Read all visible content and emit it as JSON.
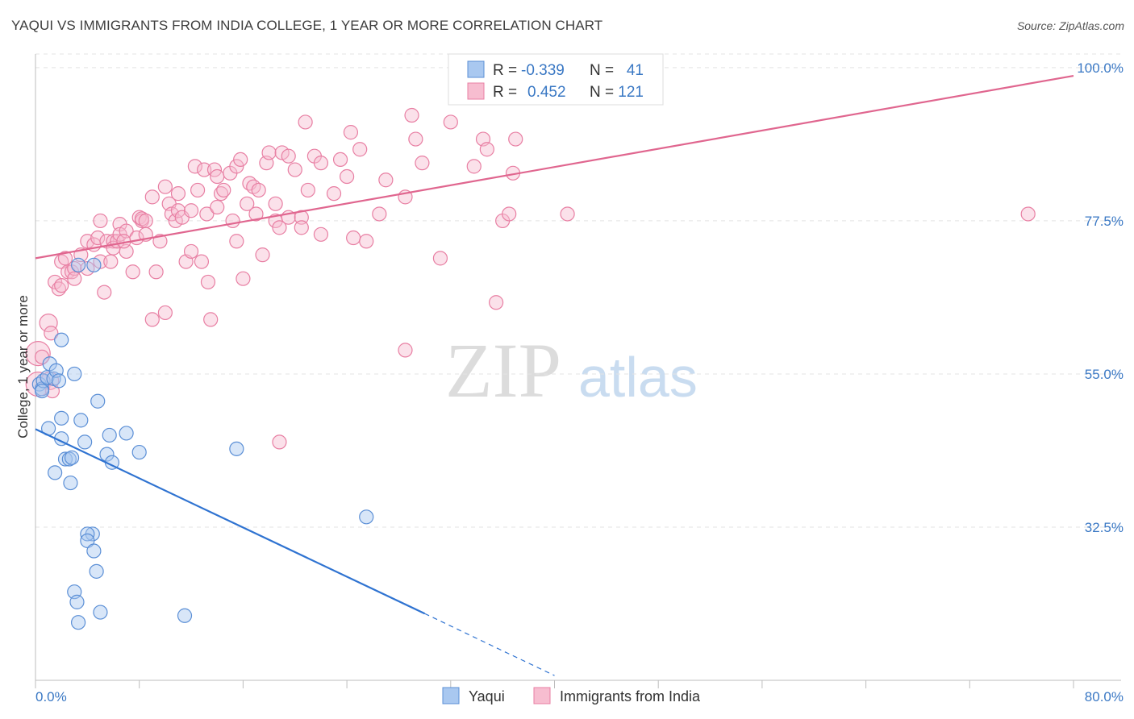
{
  "title": "YAQUI VS IMMIGRANTS FROM INDIA COLLEGE, 1 YEAR OR MORE CORRELATION CHART",
  "source": "Source: ZipAtlas.com",
  "watermark": {
    "zip": "ZIP",
    "atlas": "atlas"
  },
  "colors": {
    "blue_fill": "#a9c8f0",
    "blue_stroke": "#5b8fd6",
    "blue_line": "#2f73d1",
    "pink_fill": "#f7bdd0",
    "pink_stroke": "#e87fa3",
    "pink_line": "#e0668f",
    "label_blue": "#3a78c4",
    "grid": "#e3e3e3"
  },
  "legend": {
    "rows": [
      {
        "r_label": "R =",
        "r_value": "-0.339",
        "n_label": "N =",
        "n_value": "41"
      },
      {
        "r_label": "R =",
        "r_value": "0.452",
        "n_label": "N =",
        "n_value": "121"
      }
    ]
  },
  "bottom_legend": {
    "series1": "Yaqui",
    "series2": "Immigrants from India"
  },
  "chart_data": {
    "type": "scatter",
    "title": "YAQUI VS IMMIGRANTS FROM INDIA COLLEGE, 1 YEAR OR MORE CORRELATION CHART",
    "xlabel": "",
    "ylabel": "College, 1 year or more",
    "xlim": [
      0,
      80
    ],
    "ylim": [
      10,
      102
    ],
    "x_tick_labels": [
      "0.0%",
      "80.0%"
    ],
    "y_ticks": [
      32.5,
      55.0,
      77.5,
      100.0
    ],
    "y_tick_labels": [
      "32.5%",
      "55.0%",
      "77.5%",
      "100.0%"
    ],
    "grid": true,
    "legend_position": "top-center",
    "series": [
      {
        "name": "Yaqui",
        "color": "#a9c8f0",
        "trend": {
          "x": [
            0,
            30
          ],
          "y": [
            46.9,
            19.8
          ],
          "dashed_to": [
            40,
            10.7
          ]
        },
        "points": [
          [
            0.3,
            53.5
          ],
          [
            0.5,
            52.8
          ],
          [
            0.6,
            54.0
          ],
          [
            0.9,
            54.5
          ],
          [
            1.1,
            56.5
          ],
          [
            1.4,
            54.3
          ],
          [
            1.6,
            55.5
          ],
          [
            1.8,
            54.0
          ],
          [
            2.0,
            60.0
          ],
          [
            1.0,
            47.0
          ],
          [
            1.5,
            40.5
          ],
          [
            2.0,
            48.5
          ],
          [
            2.0,
            45.5
          ],
          [
            2.3,
            42.5
          ],
          [
            2.6,
            42.5
          ],
          [
            2.8,
            42.7
          ],
          [
            2.7,
            39.0
          ],
          [
            3.0,
            55.0
          ],
          [
            3.5,
            48.2
          ],
          [
            3.3,
            71.0
          ],
          [
            3.8,
            45.0
          ],
          [
            4.5,
            71.0
          ],
          [
            4.8,
            51.0
          ],
          [
            4.4,
            31.5
          ],
          [
            4.0,
            31.5
          ],
          [
            4.0,
            30.5
          ],
          [
            4.5,
            29.0
          ],
          [
            4.7,
            26.0
          ],
          [
            3.0,
            23.0
          ],
          [
            3.2,
            21.5
          ],
          [
            3.3,
            18.5
          ],
          [
            5.0,
            20.0
          ],
          [
            5.5,
            43.2
          ],
          [
            5.7,
            46.0
          ],
          [
            5.9,
            42.0
          ],
          [
            7.0,
            46.3
          ],
          [
            8.0,
            43.5
          ],
          [
            11.5,
            19.5
          ],
          [
            15.5,
            44.0
          ],
          [
            25.5,
            34.0
          ],
          [
            0.5,
            52.5
          ]
        ]
      },
      {
        "name": "Immigrants from India",
        "color": "#f7bdd0",
        "trend": {
          "x": [
            0,
            80
          ],
          "y": [
            72.0,
            98.8
          ]
        },
        "points": [
          [
            0.2,
            58.0
          ],
          [
            0.2,
            53.5
          ],
          [
            0.5,
            57.5
          ],
          [
            1.0,
            62.5
          ],
          [
            1.2,
            61.0
          ],
          [
            1.1,
            54.0
          ],
          [
            1.3,
            52.5
          ],
          [
            1.5,
            68.5
          ],
          [
            1.8,
            67.5
          ],
          [
            2.0,
            68.0
          ],
          [
            2.0,
            71.5
          ],
          [
            2.5,
            70.0
          ],
          [
            2.3,
            72.0
          ],
          [
            2.8,
            70.0
          ],
          [
            3.0,
            70.5
          ],
          [
            3.0,
            69.0
          ],
          [
            3.5,
            72.5
          ],
          [
            4.0,
            70.5
          ],
          [
            4.0,
            74.5
          ],
          [
            4.5,
            74.0
          ],
          [
            4.8,
            75.0
          ],
          [
            5.0,
            71.5
          ],
          [
            5.0,
            77.5
          ],
          [
            5.5,
            74.5
          ],
          [
            6.0,
            74.5
          ],
          [
            5.3,
            67.0
          ],
          [
            5.8,
            71.5
          ],
          [
            6.0,
            73.5
          ],
          [
            6.3,
            74.5
          ],
          [
            6.5,
            77.0
          ],
          [
            6.5,
            75.5
          ],
          [
            7.0,
            76.0
          ],
          [
            7.0,
            73.0
          ],
          [
            6.8,
            74.5
          ],
          [
            7.5,
            70.0
          ],
          [
            7.8,
            75.0
          ],
          [
            8.0,
            78.0
          ],
          [
            8.2,
            77.5
          ],
          [
            8.2,
            77.8
          ],
          [
            8.5,
            77.5
          ],
          [
            8.5,
            75.5
          ],
          [
            9.0,
            81.0
          ],
          [
            9.0,
            63.0
          ],
          [
            9.3,
            70.0
          ],
          [
            9.6,
            74.5
          ],
          [
            10.0,
            82.5
          ],
          [
            10.0,
            64.0
          ],
          [
            10.3,
            80.0
          ],
          [
            10.5,
            78.5
          ],
          [
            10.8,
            77.5
          ],
          [
            11.0,
            81.5
          ],
          [
            11.0,
            79.0
          ],
          [
            11.3,
            78.0
          ],
          [
            11.6,
            71.5
          ],
          [
            12.0,
            73.0
          ],
          [
            12.0,
            79.0
          ],
          [
            12.3,
            85.5
          ],
          [
            12.5,
            82.0
          ],
          [
            12.8,
            71.5
          ],
          [
            13.0,
            85.0
          ],
          [
            13.2,
            78.5
          ],
          [
            13.3,
            68.5
          ],
          [
            13.5,
            63.0
          ],
          [
            13.8,
            85.0
          ],
          [
            14.0,
            84.0
          ],
          [
            14.0,
            79.5
          ],
          [
            14.3,
            81.5
          ],
          [
            14.5,
            82.0
          ],
          [
            15.0,
            84.5
          ],
          [
            15.2,
            77.5
          ],
          [
            15.5,
            85.5
          ],
          [
            15.5,
            74.5
          ],
          [
            15.8,
            86.5
          ],
          [
            16.0,
            69.0
          ],
          [
            16.3,
            80.0
          ],
          [
            16.5,
            83.0
          ],
          [
            16.8,
            82.5
          ],
          [
            17.0,
            78.5
          ],
          [
            17.2,
            82.0
          ],
          [
            17.5,
            72.5
          ],
          [
            17.8,
            86.0
          ],
          [
            18.0,
            87.5
          ],
          [
            18.5,
            80.0
          ],
          [
            18.5,
            77.5
          ],
          [
            18.8,
            76.5
          ],
          [
            19.0,
            87.5
          ],
          [
            19.5,
            87.0
          ],
          [
            19.5,
            78.0
          ],
          [
            20.0,
            85.0
          ],
          [
            20.5,
            78.0
          ],
          [
            20.5,
            76.5
          ],
          [
            20.8,
            92.0
          ],
          [
            21.0,
            82.0
          ],
          [
            21.5,
            87.0
          ],
          [
            22.0,
            86.0
          ],
          [
            22.0,
            75.5
          ],
          [
            23.0,
            81.5
          ],
          [
            23.5,
            86.5
          ],
          [
            24.0,
            84.0
          ],
          [
            24.3,
            90.5
          ],
          [
            24.5,
            75.0
          ],
          [
            25.0,
            88.0
          ],
          [
            25.5,
            74.5
          ],
          [
            26.5,
            78.5
          ],
          [
            27.0,
            83.5
          ],
          [
            28.5,
            81.0
          ],
          [
            28.5,
            58.5
          ],
          [
            29.0,
            93.0
          ],
          [
            29.3,
            89.5
          ],
          [
            29.8,
            86.0
          ],
          [
            31.2,
            72.0
          ],
          [
            32.0,
            92.0
          ],
          [
            33.8,
            85.5
          ],
          [
            34.5,
            89.5
          ],
          [
            34.8,
            88.0
          ],
          [
            35.5,
            65.5
          ],
          [
            36.0,
            77.5
          ],
          [
            36.5,
            78.5
          ],
          [
            36.8,
            84.5
          ],
          [
            37.0,
            89.5
          ],
          [
            41.0,
            78.5
          ],
          [
            76.5,
            78.5
          ],
          [
            18.8,
            45.0
          ]
        ]
      }
    ]
  }
}
